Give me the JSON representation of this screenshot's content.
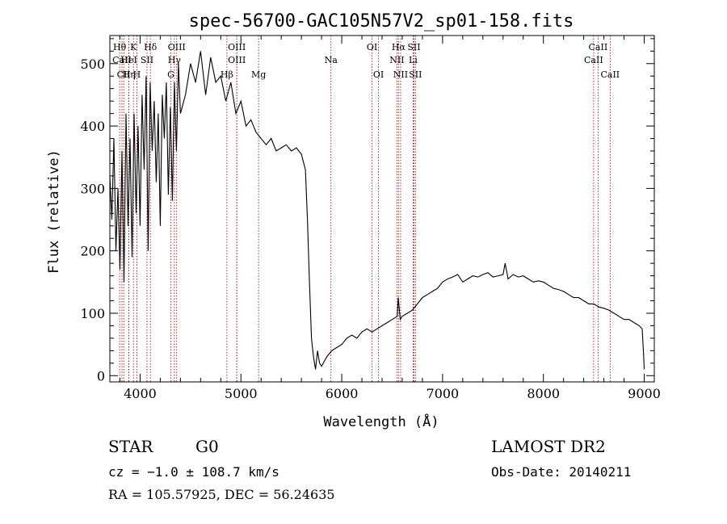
{
  "chart_data": {
    "type": "line",
    "title": "spec-56700-GAC105N57V2_sp01-158.fits",
    "xlabel": "Wavelength (Å)",
    "ylabel": "Flux (relative)",
    "xlim": [
      3700,
      9100
    ],
    "ylim": [
      -10,
      545
    ],
    "xticks": [
      4000,
      5000,
      6000,
      7000,
      8000,
      9000
    ],
    "yticks": [
      0,
      100,
      200,
      300,
      400,
      500
    ],
    "grid": false,
    "line_color": "#000000",
    "marker_color": "#8b0000",
    "series": [
      {
        "x": [
          3700,
          3720,
          3740,
          3760,
          3780,
          3800,
          3820,
          3840,
          3860,
          3880,
          3900,
          3920,
          3940,
          3960,
          3980,
          4000,
          4020,
          4040,
          4060,
          4080,
          4100,
          4120,
          4140,
          4160,
          4180,
          4200,
          4220,
          4240,
          4260,
          4280,
          4300,
          4320,
          4340,
          4360,
          4380,
          4400,
          4450,
          4500,
          4550,
          4600,
          4650,
          4700,
          4750,
          4800,
          4850,
          4900,
          4950,
          5000,
          5050,
          5100,
          5150,
          5200,
          5250,
          5300,
          5350,
          5400,
          5450,
          5500,
          5550,
          5600,
          5640,
          5660,
          5680,
          5700,
          5720,
          5740,
          5760,
          5780,
          5800,
          5850,
          5900,
          5950,
          6000,
          6050,
          6100,
          6150,
          6200,
          6250,
          6300,
          6350,
          6400,
          6450,
          6500,
          6550,
          6560,
          6580,
          6600,
          6650,
          6700,
          6750,
          6800,
          6850,
          6900,
          6950,
          7000,
          7050,
          7100,
          7150,
          7200,
          7250,
          7300,
          7350,
          7400,
          7450,
          7500,
          7550,
          7600,
          7620,
          7650,
          7700,
          7750,
          7800,
          7850,
          7900,
          7950,
          8000,
          8050,
          8100,
          8150,
          8200,
          8250,
          8300,
          8350,
          8400,
          8450,
          8500,
          8550,
          8600,
          8650,
          8700,
          8750,
          8800,
          8850,
          8900,
          8950,
          8980,
          8995,
          9000
        ],
        "y": [
          320,
          250,
          380,
          200,
          300,
          170,
          360,
          150,
          420,
          240,
          380,
          190,
          420,
          260,
          400,
          240,
          450,
          330,
          480,
          200,
          470,
          360,
          440,
          310,
          420,
          240,
          450,
          380,
          470,
          290,
          430,
          280,
          470,
          360,
          500,
          420,
          450,
          500,
          470,
          520,
          450,
          510,
          470,
          480,
          440,
          470,
          420,
          440,
          400,
          410,
          390,
          380,
          370,
          380,
          360,
          365,
          370,
          360,
          365,
          355,
          330,
          250,
          150,
          60,
          30,
          10,
          40,
          20,
          15,
          30,
          40,
          45,
          50,
          60,
          65,
          60,
          70,
          75,
          70,
          75,
          80,
          85,
          90,
          95,
          125,
          90,
          95,
          100,
          105,
          115,
          125,
          130,
          135,
          140,
          150,
          155,
          158,
          162,
          150,
          155,
          160,
          158,
          162,
          165,
          158,
          160,
          162,
          180,
          155,
          162,
          158,
          160,
          155,
          150,
          152,
          150,
          145,
          140,
          138,
          135,
          130,
          125,
          125,
          120,
          115,
          115,
          110,
          108,
          105,
          100,
          95,
          90,
          90,
          85,
          80,
          75,
          30,
          10
        ]
      }
    ],
    "annotations": [
      {
        "label": "Hθ",
        "wavelength": 3797,
        "row": 1
      },
      {
        "label": "CaII",
        "wavelength": 3820,
        "row": 2
      },
      {
        "label": "CII",
        "wavelength": 3838,
        "row": 3
      },
      {
        "label": "K",
        "wavelength": 3934,
        "row": 1
      },
      {
        "label": "HeI",
        "wavelength": 3889,
        "row": 2
      },
      {
        "label": "Hη",
        "wavelength": 3889,
        "row": 3
      },
      {
        "label": "H",
        "wavelength": 3968,
        "row": 3
      },
      {
        "label": "SII",
        "wavelength": 4068,
        "row": 2
      },
      {
        "label": "Hδ",
        "wavelength": 4102,
        "row": 1
      },
      {
        "label": "OIII",
        "wavelength": 4363,
        "row": 1
      },
      {
        "label": "Hγ",
        "wavelength": 4340,
        "row": 2
      },
      {
        "label": "G",
        "wavelength": 4305,
        "row": 3
      },
      {
        "label": "OIII",
        "wavelength": 4959,
        "row": 1
      },
      {
        "label": "OIII",
        "wavelength": 4959,
        "row": 2
      },
      {
        "label": "Hβ",
        "wavelength": 4861,
        "row": 3
      },
      {
        "label": "Mg",
        "wavelength": 5175,
        "row": 3
      },
      {
        "label": "Na",
        "wavelength": 5893,
        "row": 2
      },
      {
        "label": "OI",
        "wavelength": 6300,
        "row": 1
      },
      {
        "label": "OI",
        "wavelength": 6364,
        "row": 3
      },
      {
        "label": "Hα",
        "wavelength": 6563,
        "row": 1
      },
      {
        "label": "SII",
        "wavelength": 6716,
        "row": 1
      },
      {
        "label": "NII",
        "wavelength": 6548,
        "row": 2
      },
      {
        "label": "Li",
        "wavelength": 6708,
        "row": 2
      },
      {
        "label": "NII",
        "wavelength": 6584,
        "row": 3
      },
      {
        "label": "SII",
        "wavelength": 6731,
        "row": 3
      },
      {
        "label": "CaII",
        "wavelength": 8542,
        "row": 1
      },
      {
        "label": "CaII",
        "wavelength": 8498,
        "row": 2
      },
      {
        "label": "CaII",
        "wavelength": 8662,
        "row": 3
      }
    ]
  },
  "info": {
    "object_type": "STAR",
    "subclass": "G0",
    "survey": "LAMOST DR2",
    "redshift": "cz = −1.0 ± 108.7 km/s",
    "obs_date": "Obs-Date: 20140211",
    "coords": "RA = 105.57925, DEC =  56.24635"
  }
}
